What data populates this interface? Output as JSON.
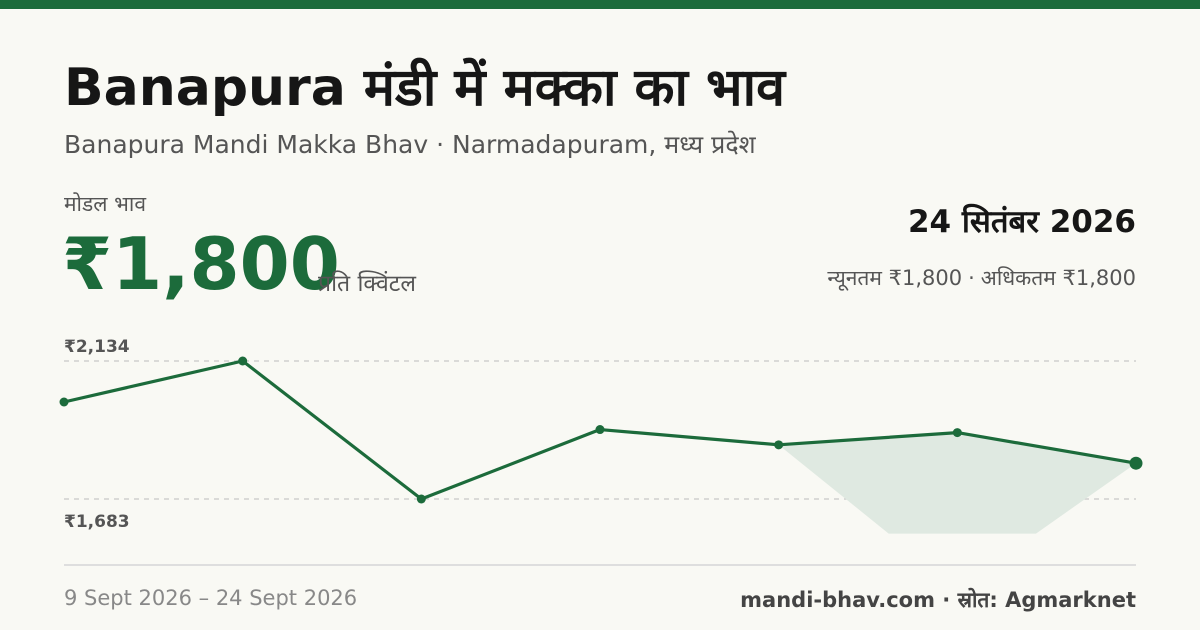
{
  "title": "Banapura मंडी में मक्का का भाव",
  "subtitle": "Banapura Mandi Makka Bhav · Narmadapuram, मध्य प्रदेश",
  "modal_label": "मोडल भाव",
  "modal_price": "₹1,800",
  "price_unit": "प्रति क्विंटल",
  "date": "24 सितंबर 2026",
  "min_text": "न्यूनतम ₹1,800",
  "max_text": "अधिकतम ₹1,800",
  "date_range": "9 Sept 2026 – 24 Sept 2026",
  "source": "mandi-bhav.com · स्रोत: Agmarknet",
  "colors": {
    "accent": "#1c6b3b",
    "band": "#dfe9e1"
  },
  "chart_data": {
    "type": "line",
    "x": [
      "9 Sept 2026",
      "",
      "",
      "",
      "",
      "",
      "24 Sept 2026"
    ],
    "series": [
      {
        "values": [
          2000,
          2134,
          1683,
          1910,
          1860,
          1900,
          1800
        ]
      }
    ],
    "band": {
      "x_index": [
        4,
        5,
        6
      ],
      "upper": [
        1860,
        1900,
        1800
      ],
      "lower": [
        1860,
        1570,
        1800
      ]
    },
    "y_tick_labels": [
      "₹2,134",
      "₹1,683"
    ],
    "y_ticks": [
      2134,
      1683
    ],
    "grid": true,
    "legend": "none"
  }
}
